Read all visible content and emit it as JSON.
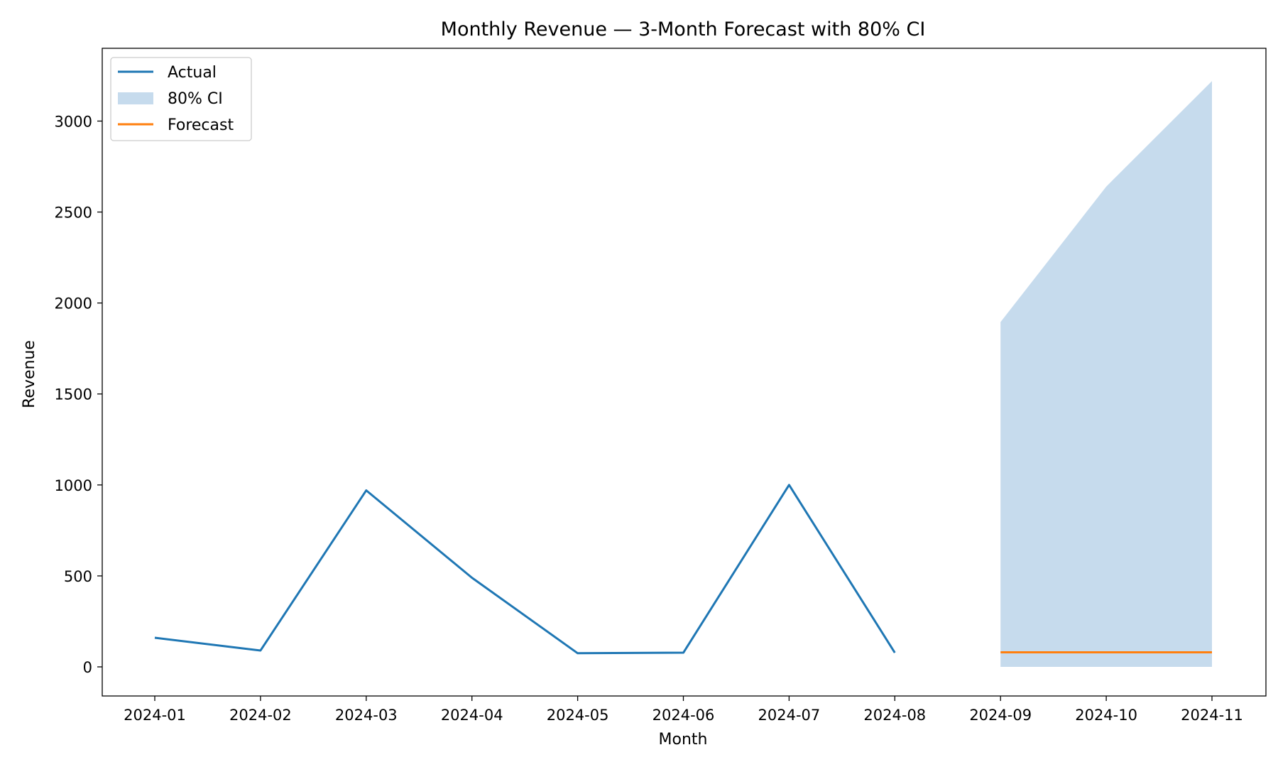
{
  "chart_data": {
    "type": "line",
    "title": "Monthly Revenue — 3-Month Forecast with 80% CI",
    "xlabel": "Month",
    "ylabel": "Revenue",
    "x": [
      "2024-01",
      "2024-02",
      "2024-03",
      "2024-04",
      "2024-05",
      "2024-06",
      "2024-07",
      "2024-08",
      "2024-09",
      "2024-10",
      "2024-11"
    ],
    "ylim": [
      -160,
      3400
    ],
    "yticks": [
      0,
      500,
      1000,
      1500,
      2000,
      2500,
      3000
    ],
    "grid": false,
    "legend_position": "top-left",
    "series": [
      {
        "name": "Actual",
        "color": "#1f77b4",
        "x": [
          "2024-01",
          "2024-02",
          "2024-03",
          "2024-04",
          "2024-05",
          "2024-06",
          "2024-07",
          "2024-08"
        ],
        "values": [
          160,
          90,
          970,
          490,
          75,
          78,
          1000,
          78
        ]
      },
      {
        "name": "80% CI",
        "color": "#c6dbed",
        "kind": "band",
        "x": [
          "2024-09",
          "2024-10",
          "2024-11"
        ],
        "lower": [
          0,
          0,
          0
        ],
        "upper": [
          1895,
          2640,
          3220
        ]
      },
      {
        "name": "Forecast",
        "color": "#ff7f0e",
        "x": [
          "2024-09",
          "2024-10",
          "2024-11"
        ],
        "values": [
          80,
          80,
          80
        ]
      }
    ]
  }
}
